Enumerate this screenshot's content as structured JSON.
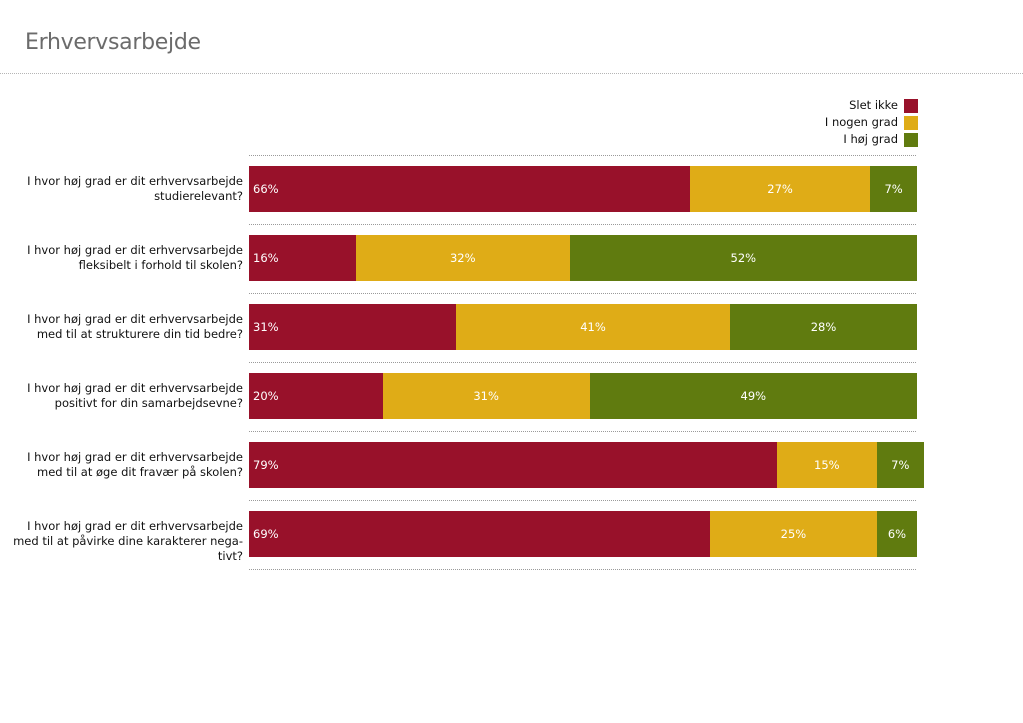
{
  "page": {
    "title": "Erhvervsarbejde"
  },
  "legend": {
    "items": [
      {
        "label": "Slet ikke",
        "color": "#98112a"
      },
      {
        "label": "I nogen grad",
        "color": "#dfac17"
      },
      {
        "label": "I høj grad",
        "color": "#607b0f"
      }
    ]
  },
  "chart_data": {
    "type": "bar",
    "orientation": "horizontal",
    "stacked": true,
    "percent_stacked": true,
    "legend_position": "top-right",
    "grid": false,
    "xlim": [
      0,
      100
    ],
    "categories": [
      "I hvor høj grad er dit erhvervsarbejde studierelevant?",
      "I hvor høj grad er dit erhvervsarbejde fleksibelt i forhold til skolen?",
      "I hvor høj grad er dit erhvervsarbejde med til at strukturere din tid bedre?",
      "I hvor høj grad er dit erhvervsarbejde positivt for din samarbejdsevne?",
      "I hvor høj grad er dit erhvervsarbejde med til at øge dit fravær på skolen?",
      "I hvor høj grad er dit erhvervsarbejde med til at påvirke dine karakterer nega-tivt?"
    ],
    "category_lines": [
      [
        "I hvor høj grad er dit erhvervsarbejde",
        "studierelevant?"
      ],
      [
        "I hvor høj grad er dit erhvervsarbejde",
        "fleksibelt i forhold til skolen?"
      ],
      [
        "I hvor høj grad er dit erhvervsarbejde",
        "med til at strukturere din tid bedre?"
      ],
      [
        "I hvor høj grad er dit erhvervsarbejde",
        "positivt for din samarbejdsevne?"
      ],
      [
        "I hvor høj grad er dit erhvervsarbejde",
        "med til at øge dit fravær på skolen?"
      ],
      [
        "I hvor høj grad er dit erhvervsarbejde",
        "med til at påvirke dine karakterer nega-",
        "tivt?"
      ]
    ],
    "series": [
      {
        "name": "Slet ikke",
        "color": "#98112a",
        "values": [
          66,
          16,
          31,
          20,
          79,
          69
        ],
        "labels": [
          "66%",
          "16%",
          "31%",
          "20%",
          "79%",
          "69%"
        ],
        "label_align": "left"
      },
      {
        "name": "I nogen grad",
        "color": "#dfac17",
        "values": [
          27,
          32,
          41,
          31,
          15,
          25
        ],
        "labels": [
          "27%",
          "32%",
          "41%",
          "31%",
          "15%",
          "25%"
        ],
        "label_align": "center"
      },
      {
        "name": "I høj grad",
        "color": "#607b0f",
        "values": [
          7,
          52,
          28,
          49,
          7,
          6
        ],
        "labels": [
          "7%",
          "52%",
          "28%",
          "49%",
          "7%",
          "6%"
        ],
        "label_align": "center"
      }
    ]
  }
}
